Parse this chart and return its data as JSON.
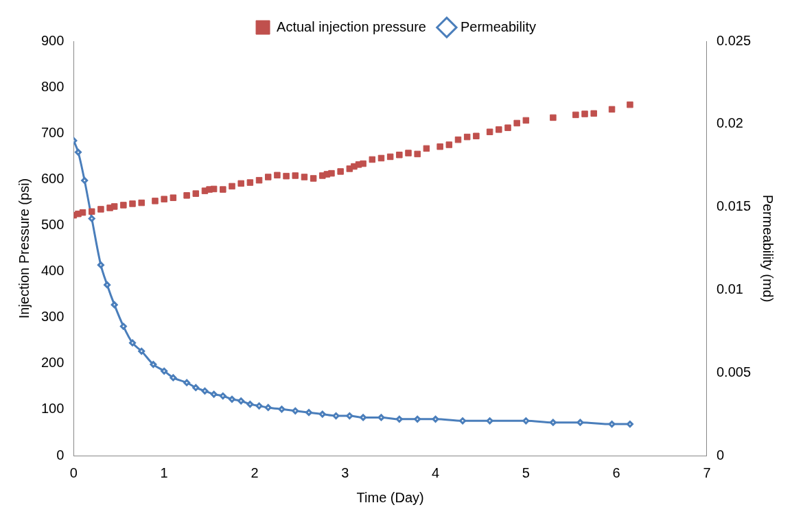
{
  "chart_data": {
    "type": "scatter",
    "xlabel": "Time (Day)",
    "ylabel": "Injection Pressure (psi)",
    "y2label": "Permeability (md)",
    "xlim": [
      0,
      7
    ],
    "xticks": [
      0,
      1,
      2,
      3,
      4,
      5,
      6,
      7
    ],
    "ylim": [
      0,
      900
    ],
    "yticks": [
      0,
      100,
      200,
      300,
      400,
      500,
      600,
      700,
      800,
      900
    ],
    "y2lim": [
      0,
      0.025
    ],
    "y2ticks": [
      0,
      0.005,
      0.01,
      0.015,
      0.02,
      0.025
    ],
    "grid": false,
    "legend": "top",
    "series": [
      {
        "name": "Actual injection pressure",
        "marker": "square",
        "color": "#c0504d",
        "x": [
          0,
          0.05,
          0.1,
          0.2,
          0.3,
          0.4,
          0.45,
          0.55,
          0.65,
          0.75,
          0.9,
          1.0,
          1.1,
          1.25,
          1.35,
          1.45,
          1.5,
          1.55,
          1.65,
          1.75,
          1.85,
          1.95,
          2.05,
          2.15,
          2.25,
          2.35,
          2.45,
          2.55,
          2.65,
          2.75,
          2.8,
          2.85,
          2.95,
          3.05,
          3.1,
          3.15,
          3.2,
          3.3,
          3.4,
          3.5,
          3.6,
          3.7,
          3.8,
          3.9,
          4.05,
          4.15,
          4.25,
          4.35,
          4.45,
          4.6,
          4.7,
          4.8,
          4.9,
          5.0,
          5.3,
          5.55,
          5.65,
          5.75,
          5.95,
          6.15
        ],
        "values": [
          522,
          525,
          528,
          530,
          535,
          538,
          541,
          544,
          547,
          549,
          553,
          557,
          560,
          565,
          569,
          575,
          578,
          579,
          578,
          585,
          591,
          593,
          598,
          605,
          609,
          607,
          608,
          605,
          602,
          608,
          611,
          613,
          617,
          623,
          628,
          632,
          634,
          643,
          646,
          649,
          653,
          657,
          655,
          667,
          671,
          675,
          686,
          692,
          694,
          703,
          708,
          712,
          722,
          728,
          734,
          740,
          742,
          743,
          752,
          762
        ]
      },
      {
        "name": "Permeability",
        "type": "line",
        "axis": "y2",
        "marker": "diamond",
        "line_style": "solid",
        "color": "#4a7ebb",
        "x": [
          0,
          0.05,
          0.12,
          0.2,
          0.3,
          0.37,
          0.45,
          0.55,
          0.65,
          0.75,
          0.88,
          1.0,
          1.1,
          1.25,
          1.35,
          1.45,
          1.55,
          1.65,
          1.75,
          1.85,
          1.95,
          2.05,
          2.15,
          2.3,
          2.45,
          2.6,
          2.75,
          2.9,
          3.05,
          3.2,
          3.4,
          3.6,
          3.8,
          4.0,
          4.3,
          4.6,
          5.0,
          5.3,
          5.6,
          5.95,
          6.15
        ],
        "values": [
          0.019,
          0.0183,
          0.0166,
          0.0143,
          0.0115,
          0.0103,
          0.0091,
          0.0078,
          0.0068,
          0.0063,
          0.0055,
          0.0051,
          0.0047,
          0.0044,
          0.0041,
          0.0039,
          0.0037,
          0.0036,
          0.0034,
          0.0033,
          0.0031,
          0.003,
          0.0029,
          0.0028,
          0.0027,
          0.0026,
          0.0025,
          0.0024,
          0.0024,
          0.0023,
          0.0023,
          0.0022,
          0.0022,
          0.0022,
          0.0021,
          0.0021,
          0.0021,
          0.002,
          0.002,
          0.0019,
          0.0019
        ]
      }
    ]
  }
}
